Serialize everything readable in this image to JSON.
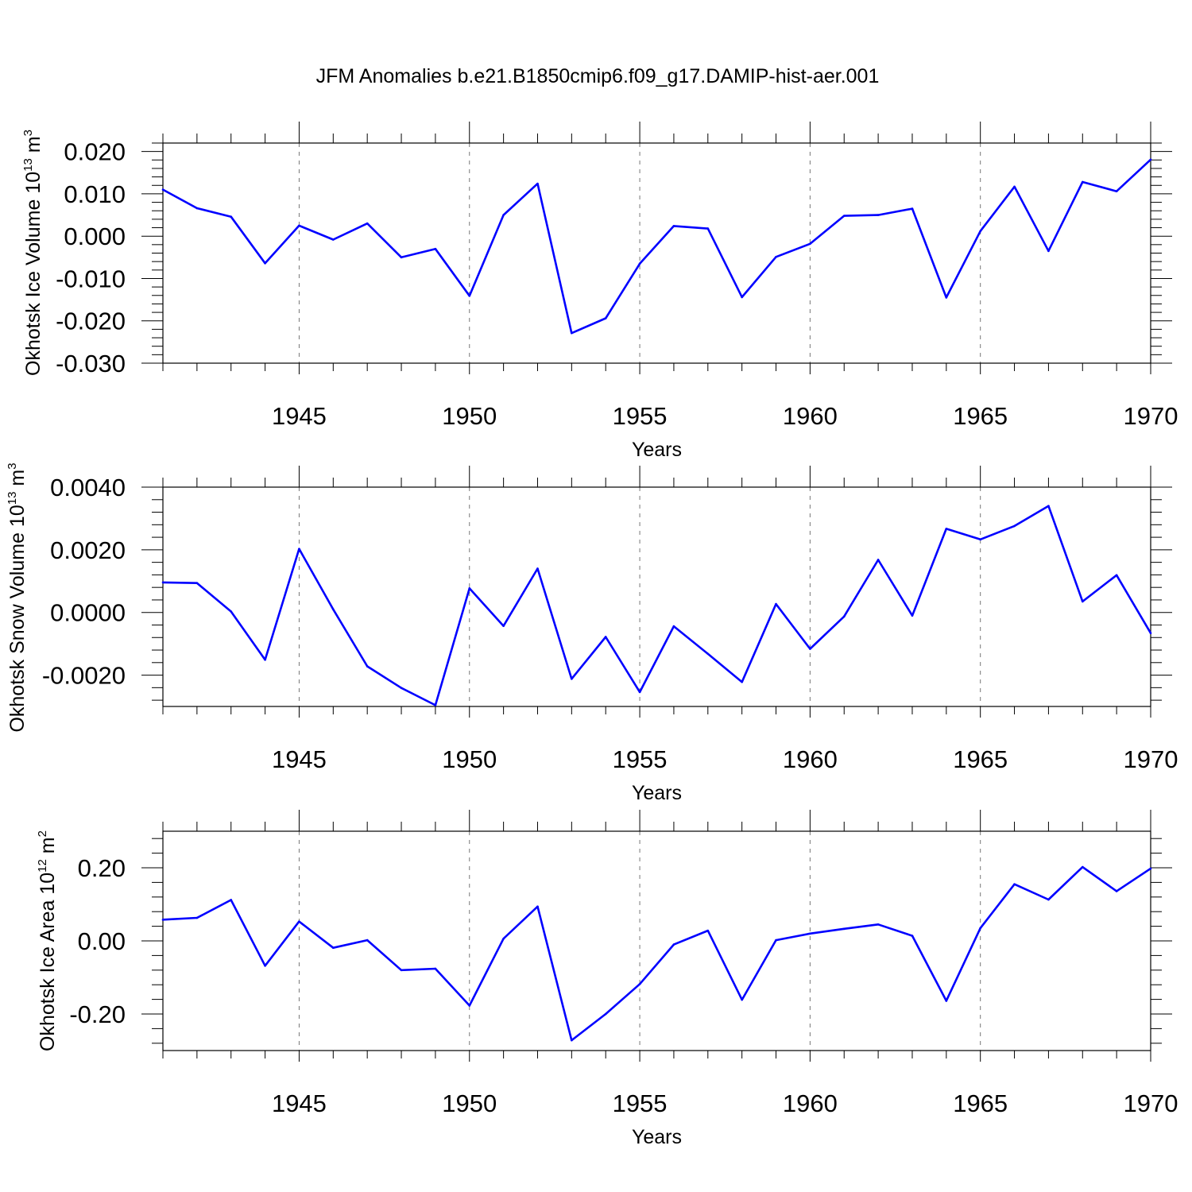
{
  "title": "JFM Anomalies b.e21.B1850cmip6.f09_g17.DAMIP-hist-aer.001",
  "line_color": "#0000ff",
  "chart_data": [
    {
      "type": "line",
      "ylabel": "Okhotsk Ice Volume",
      "yunit_base": "10",
      "yunit_exp": "13",
      "yunit_rest": "m",
      "yunit_rest_exp": "3",
      "xlabel": "Years",
      "xlim": [
        1941,
        1970
      ],
      "ylim": [
        -0.03,
        0.022
      ],
      "yticks": [
        "0.020",
        "0.010",
        "0.000",
        "-0.010",
        "-0.020",
        "-0.030"
      ],
      "ytick_values": [
        0.02,
        0.01,
        0.0,
        -0.01,
        -0.02,
        -0.03
      ],
      "xticks": [
        "1945",
        "1950",
        "1955",
        "1960",
        "1965",
        "1970"
      ],
      "xtick_values": [
        1945,
        1950,
        1955,
        1960,
        1965,
        1970
      ],
      "x": [
        1941,
        1942,
        1943,
        1944,
        1945,
        1946,
        1947,
        1948,
        1949,
        1950,
        1951,
        1952,
        1953,
        1954,
        1955,
        1956,
        1957,
        1958,
        1959,
        1960,
        1961,
        1962,
        1963,
        1964,
        1965,
        1966,
        1967,
        1968,
        1969,
        1970
      ],
      "series": [
        {
          "values": [
            0.011,
            0.0066,
            0.0046,
            -0.0064,
            0.0025,
            -0.0008,
            0.003,
            -0.005,
            -0.003,
            -0.0141,
            0.005,
            0.0124,
            -0.0229,
            -0.0194,
            -0.0065,
            0.0024,
            0.0018,
            -0.0144,
            -0.0049,
            -0.0018,
            0.0048,
            0.005,
            0.0065,
            -0.0145,
            0.0012,
            0.0117,
            -0.0035,
            0.0128,
            0.0106,
            0.0181
          ]
        }
      ]
    },
    {
      "type": "line",
      "ylabel": "Okhotsk Snow Volume",
      "yunit_base": "10",
      "yunit_exp": "13",
      "yunit_rest": "m",
      "yunit_rest_exp": "3",
      "xlabel": "Years",
      "xlim": [
        1941,
        1970
      ],
      "ylim": [
        -0.003,
        0.004
      ],
      "yticks": [
        "0.0040",
        "0.0020",
        "0.0000",
        "-0.0020"
      ],
      "ytick_values": [
        0.004,
        0.002,
        0.0,
        -0.002
      ],
      "xticks": [
        "1945",
        "1950",
        "1955",
        "1960",
        "1965",
        "1970"
      ],
      "xtick_values": [
        1945,
        1950,
        1955,
        1960,
        1965,
        1970
      ],
      "x": [
        1941,
        1942,
        1943,
        1944,
        1945,
        1946,
        1947,
        1948,
        1949,
        1950,
        1951,
        1952,
        1953,
        1954,
        1955,
        1956,
        1957,
        1958,
        1959,
        1960,
        1961,
        1962,
        1963,
        1964,
        1965,
        1966,
        1967,
        1968,
        1969,
        1970
      ],
      "series": [
        {
          "values": [
            0.00096,
            0.00094,
            3e-05,
            -0.00151,
            0.00203,
            0.0001,
            -0.00172,
            -0.00241,
            -0.00296,
            0.00077,
            -0.00043,
            0.0014,
            -0.00212,
            -0.00078,
            -0.00254,
            -0.00044,
            -0.00132,
            -0.00222,
            0.00027,
            -0.00116,
            -0.00013,
            0.00168,
            -0.0001,
            0.00267,
            0.00233,
            0.00276,
            0.0034,
            0.00035,
            0.00119,
            -0.00066
          ]
        }
      ]
    },
    {
      "type": "line",
      "ylabel": "Okhotsk Ice Area",
      "yunit_base": "10",
      "yunit_exp": "12",
      "yunit_rest": "m",
      "yunit_rest_exp": "2",
      "xlabel": "Years",
      "xlim": [
        1941,
        1970
      ],
      "ylim": [
        -0.3,
        0.3
      ],
      "yticks": [
        "0.20",
        "0.00",
        "-0.20"
      ],
      "ytick_values": [
        0.2,
        0.0,
        -0.2
      ],
      "xticks": [
        "1945",
        "1950",
        "1955",
        "1960",
        "1965",
        "1970"
      ],
      "xtick_values": [
        1945,
        1950,
        1955,
        1960,
        1965,
        1970
      ],
      "x": [
        1941,
        1942,
        1943,
        1944,
        1945,
        1946,
        1947,
        1948,
        1949,
        1950,
        1951,
        1952,
        1953,
        1954,
        1955,
        1956,
        1957,
        1958,
        1959,
        1960,
        1961,
        1962,
        1963,
        1964,
        1965,
        1966,
        1967,
        1968,
        1969,
        1970
      ],
      "series": [
        {
          "values": [
            0.058,
            0.063,
            0.112,
            -0.068,
            0.053,
            -0.019,
            0.002,
            -0.08,
            -0.076,
            -0.177,
            0.006,
            0.094,
            -0.272,
            -0.2,
            -0.118,
            -0.01,
            0.028,
            -0.161,
            0.002,
            0.02,
            0.033,
            0.045,
            0.014,
            -0.164,
            0.035,
            0.155,
            0.113,
            0.202,
            0.136,
            0.198
          ]
        }
      ]
    }
  ]
}
